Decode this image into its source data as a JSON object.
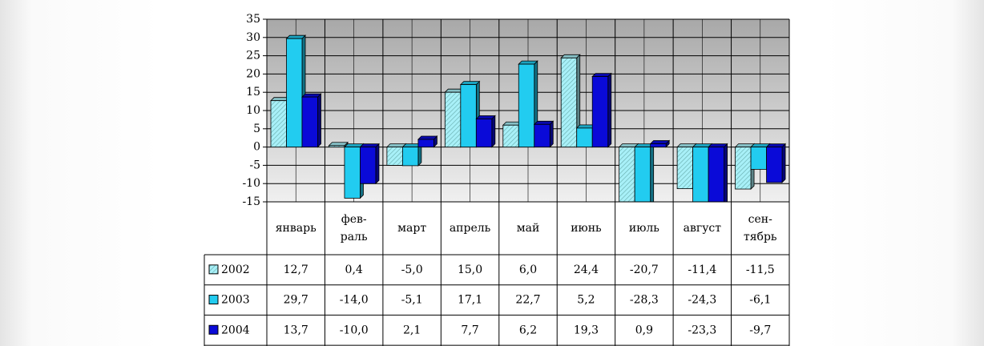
{
  "chart_data": {
    "type": "bar",
    "categories": [
      "январь",
      "фев-\nраль",
      "март",
      "апрель",
      "май",
      "июнь",
      "июль",
      "август",
      "сен-\nтябрь"
    ],
    "series": [
      {
        "name": "2002",
        "color": "#a8f0f8",
        "hatch": true,
        "values": [
          12.7,
          0.4,
          -5.0,
          15.0,
          6.0,
          24.4,
          -20.7,
          -11.4,
          -11.5
        ],
        "value_labels": [
          "12,7",
          "0,4",
          "-5,0",
          "15,0",
          "6,0",
          "24,4",
          "-20,7",
          "-11,4",
          "-11,5"
        ]
      },
      {
        "name": "2003",
        "color": "#22ccf0",
        "hatch": false,
        "values": [
          29.7,
          -14.0,
          -5.1,
          17.1,
          22.7,
          5.2,
          -28.3,
          -24.3,
          -6.1
        ],
        "value_labels": [
          "29,7",
          "-14,0",
          "-5,1",
          "17,1",
          "22,7",
          "5,2",
          "-28,3",
          "-24,3",
          "-6,1"
        ]
      },
      {
        "name": "2004",
        "color": "#0a0ad8",
        "hatch": false,
        "values": [
          13.7,
          -10.0,
          2.1,
          7.7,
          6.2,
          19.3,
          0.9,
          -23.3,
          -9.7
        ],
        "value_labels": [
          "13,7",
          "-10,0",
          "2,1",
          "7,7",
          "6,2",
          "19,3",
          "0,9",
          "-23,3",
          "-9,7"
        ]
      }
    ],
    "ylim": [
      -15,
      35
    ],
    "yticks": [
      -15,
      -10,
      -5,
      0,
      5,
      10,
      15,
      20,
      25,
      30,
      35
    ],
    "grid": true
  }
}
